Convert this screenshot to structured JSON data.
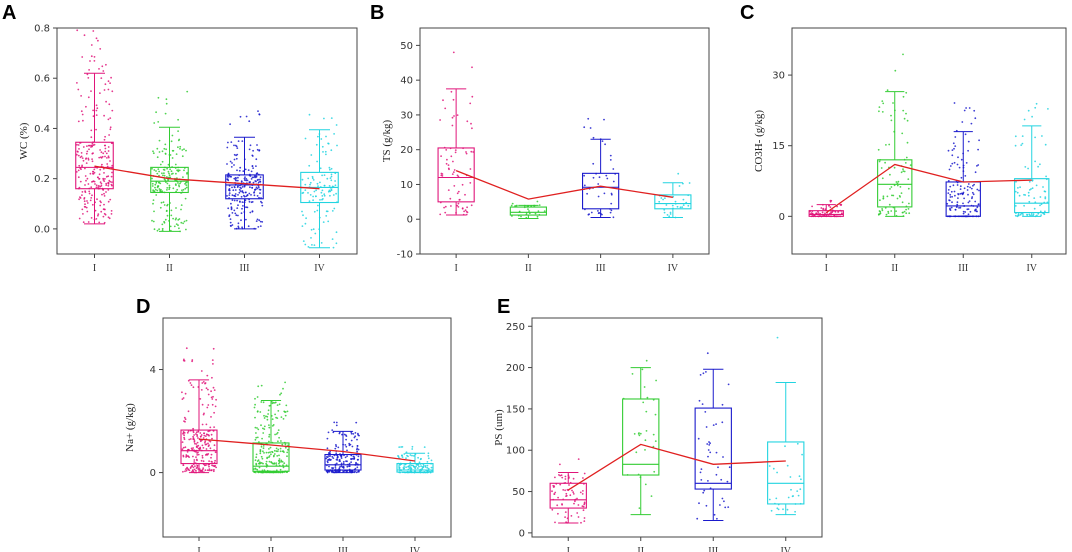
{
  "panels": [
    {
      "letter": "A",
      "ylabel": "WC (%)",
      "ylim": [
        -0.1,
        0.8
      ],
      "yticks": [
        0.0,
        0.2,
        0.4,
        0.6,
        0.8
      ],
      "ytick_labels": [
        "0.0",
        "0.2",
        "0.4",
        "0.6",
        "0.8"
      ],
      "categories": [
        "I",
        "II",
        "III",
        "IV"
      ],
      "colors": [
        "#e0157a",
        "#33cc33",
        "#1a1acc",
        "#22d4e0"
      ],
      "boxes": [
        {
          "min": 0.02,
          "q1": 0.16,
          "median": 0.245,
          "q3": 0.345,
          "max": 0.62
        },
        {
          "min": -0.01,
          "q1": 0.145,
          "median": 0.19,
          "q3": 0.245,
          "max": 0.405
        },
        {
          "min": 0.0,
          "q1": 0.12,
          "median": 0.175,
          "q3": 0.215,
          "max": 0.365
        },
        {
          "min": -0.075,
          "q1": 0.105,
          "median": 0.165,
          "q3": 0.225,
          "max": 0.395
        }
      ],
      "means": [
        0.25,
        0.2,
        0.18,
        0.16
      ],
      "points_per_group": [
        260,
        200,
        240,
        120
      ]
    },
    {
      "letter": "B",
      "ylabel": "TS (g/kg)",
      "ylim": [
        -10,
        55
      ],
      "yticks": [
        -10,
        0,
        10,
        20,
        30,
        40,
        50
      ],
      "ytick_labels": [
        "-10",
        "0",
        "10",
        "20",
        "30",
        "40",
        "50"
      ],
      "categories": [
        "I",
        "II",
        "III",
        "IV"
      ],
      "colors": [
        "#e0157a",
        "#33cc33",
        "#1a1acc",
        "#22d4e0"
      ],
      "boxes": [
        {
          "min": 1.2,
          "q1": 5.0,
          "median": 12.0,
          "q3": 20.5,
          "max": 37.5
        },
        {
          "min": 0.2,
          "q1": 1.2,
          "median": 2.0,
          "q3": 3.5,
          "max": 4.0
        },
        {
          "min": 0.5,
          "q1": 3.0,
          "median": 9.2,
          "q3": 13.2,
          "max": 23.0
        },
        {
          "min": 0.5,
          "q1": 3.0,
          "median": 4.5,
          "q3": 7.0,
          "max": 10.5
        }
      ],
      "means": [
        14.0,
        5.8,
        9.5,
        6.3
      ],
      "points_per_group": [
        75,
        30,
        45,
        30
      ]
    },
    {
      "letter": "C",
      "ylabel": "CO3H- (g/kg)",
      "ylim": [
        -8,
        40
      ],
      "yticks": [
        0,
        15,
        30
      ],
      "ytick_labels": [
        "0",
        "15",
        "30"
      ],
      "categories": [
        "I",
        "II",
        "III",
        "IV"
      ],
      "colors": [
        "#e0157a",
        "#33cc33",
        "#1a1acc",
        "#22d4e0"
      ],
      "boxes": [
        {
          "min": 0.0,
          "q1": 0.0,
          "median": 0.4,
          "q3": 1.2,
          "max": 2.5
        },
        {
          "min": 0.0,
          "q1": 2.0,
          "median": 6.8,
          "q3": 12.0,
          "max": 26.5
        },
        {
          "min": 0.0,
          "q1": 0.0,
          "median": 2.2,
          "q3": 7.3,
          "max": 18.0
        },
        {
          "min": 0.0,
          "q1": 0.8,
          "median": 2.8,
          "q3": 8.0,
          "max": 19.2
        }
      ],
      "means": [
        0.8,
        11.0,
        7.3,
        7.7
      ],
      "points_per_group": [
        80,
        90,
        150,
        80
      ]
    },
    {
      "letter": "D",
      "ylabel": "Na+ (g/kg)",
      "ylim": [
        -2.5,
        6.0
      ],
      "yticks": [
        0,
        4
      ],
      "ytick_labels": [
        "0",
        "4"
      ],
      "categories": [
        "I",
        "II",
        "III",
        "IV"
      ],
      "colors": [
        "#e0157a",
        "#33cc33",
        "#1a1acc",
        "#22d4e0"
      ],
      "boxes": [
        {
          "min": 0.0,
          "q1": 0.35,
          "median": 0.85,
          "q3": 1.65,
          "max": 3.6
        },
        {
          "min": 0.0,
          "q1": 0.05,
          "median": 0.25,
          "q3": 1.15,
          "max": 2.8
        },
        {
          "min": 0.0,
          "q1": 0.1,
          "median": 0.3,
          "q3": 0.7,
          "max": 1.6
        },
        {
          "min": 0.0,
          "q1": 0.02,
          "median": 0.1,
          "q3": 0.35,
          "max": 0.75
        }
      ],
      "means": [
        1.3,
        1.07,
        0.82,
        0.45
      ],
      "points_per_group": [
        260,
        240,
        200,
        130
      ]
    },
    {
      "letter": "E",
      "ylabel": "PS (um)",
      "ylim": [
        -5,
        260
      ],
      "yticks": [
        0,
        50,
        100,
        150,
        200,
        250
      ],
      "ytick_labels": [
        "0",
        "50",
        "100",
        "150",
        "200",
        "250"
      ],
      "categories": [
        "I",
        "II",
        "III",
        "IV"
      ],
      "colors": [
        "#e0157a",
        "#33cc33",
        "#1a1acc",
        "#22d4e0"
      ],
      "boxes": [
        {
          "min": 12,
          "q1": 30,
          "median": 40,
          "q3": 60,
          "max": 73
        },
        {
          "min": 22,
          "q1": 70,
          "median": 83,
          "q3": 162,
          "max": 200
        },
        {
          "min": 15,
          "q1": 53,
          "median": 60,
          "q3": 151,
          "max": 198
        },
        {
          "min": 22,
          "q1": 35,
          "median": 60,
          "q3": 110,
          "max": 182
        }
      ],
      "means": [
        52,
        107,
        83,
        87
      ],
      "points_per_group": [
        75,
        30,
        45,
        30
      ]
    }
  ],
  "chart_data": [
    {
      "type": "box",
      "title": "A",
      "ylabel": "WC (%)",
      "categories": [
        "I",
        "II",
        "III",
        "IV"
      ],
      "medians": [
        0.245,
        0.19,
        0.175,
        0.165
      ],
      "means": [
        0.25,
        0.2,
        0.18,
        0.16
      ],
      "ylim": [
        -0.1,
        0.8
      ]
    },
    {
      "type": "box",
      "title": "B",
      "ylabel": "TS (g/kg)",
      "categories": [
        "I",
        "II",
        "III",
        "IV"
      ],
      "medians": [
        12.0,
        2.0,
        9.2,
        4.5
      ],
      "means": [
        14.0,
        5.8,
        9.5,
        6.3
      ],
      "ylim": [
        -10,
        55
      ]
    },
    {
      "type": "box",
      "title": "C",
      "ylabel": "CO3H- (g/kg)",
      "categories": [
        "I",
        "II",
        "III",
        "IV"
      ],
      "medians": [
        0.4,
        6.8,
        2.2,
        2.8
      ],
      "means": [
        0.8,
        11.0,
        7.3,
        7.7
      ],
      "ylim": [
        -8,
        40
      ]
    },
    {
      "type": "box",
      "title": "D",
      "ylabel": "Na+ (g/kg)",
      "categories": [
        "I",
        "II",
        "III",
        "IV"
      ],
      "medians": [
        0.85,
        0.25,
        0.3,
        0.1
      ],
      "means": [
        1.3,
        1.07,
        0.82,
        0.45
      ],
      "ylim": [
        -2.5,
        6.0
      ]
    },
    {
      "type": "box",
      "title": "E",
      "ylabel": "PS (um)",
      "categories": [
        "I",
        "II",
        "III",
        "IV"
      ],
      "medians": [
        40,
        83,
        60,
        60
      ],
      "means": [
        52,
        107,
        83,
        87
      ],
      "ylim": [
        -5,
        260
      ]
    }
  ]
}
